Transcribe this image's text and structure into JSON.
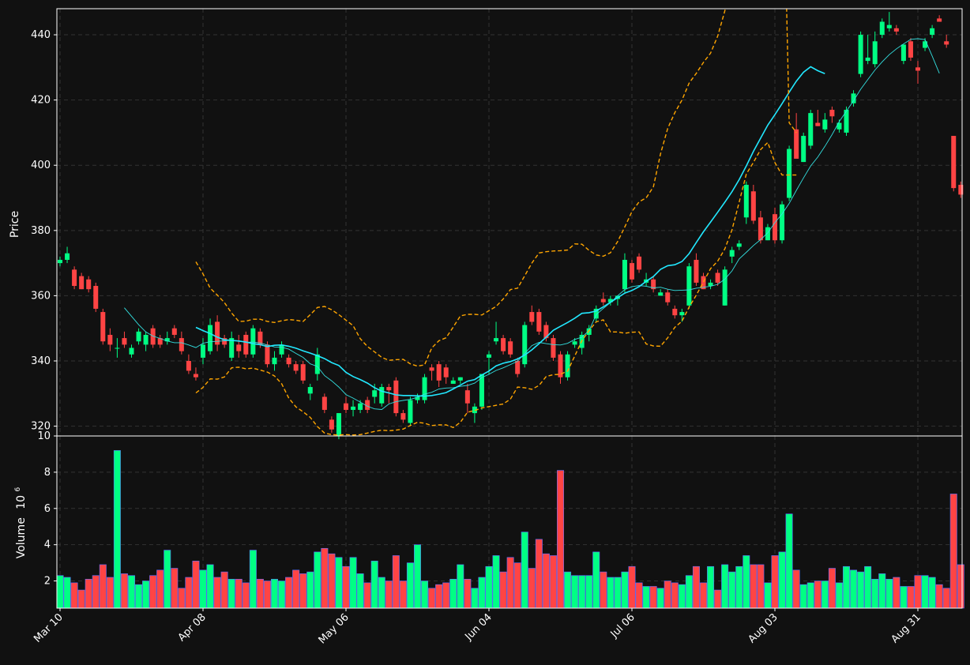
{
  "chart_data": {
    "type": "candlestick",
    "colors": {
      "background": "#111111",
      "up": "#00ff84",
      "down": "#ff4444",
      "volume_edge": "#5a6cff",
      "ma_fast": "#33e0e0",
      "ma_slow": "#22e8ff",
      "bollinger": "#ffa500",
      "grid": "#333333",
      "axis": "#ffffff"
    },
    "grid": true,
    "price_panel": {
      "ylabel": "Price",
      "yticks": [
        320,
        340,
        360,
        380,
        400,
        420,
        440
      ],
      "ylim": [
        317,
        448
      ]
    },
    "volume_panel": {
      "ylabel": "Volume",
      "ylabel_exponent": "10",
      "ylabel_exponent_power": "6",
      "yticks": [
        "2",
        "4",
        "6",
        "8",
        "10"
      ],
      "ytick_values": [
        2,
        4,
        6,
        8,
        10
      ],
      "ylim": [
        0.5,
        10
      ]
    },
    "xticks": [
      {
        "label": "Mar 10",
        "index": 0
      },
      {
        "label": "Apr 08",
        "index": 20
      },
      {
        "label": "May 06",
        "index": 40
      },
      {
        "label": "Jun 04",
        "index": 60
      },
      {
        "label": "Jul 06",
        "index": 80
      },
      {
        "label": "Aug 03",
        "index": 100
      },
      {
        "label": "Aug 31",
        "index": 120
      }
    ],
    "ohlc": [
      [
        370,
        372,
        369,
        371
      ],
      [
        371,
        375,
        370,
        373
      ],
      [
        368,
        369,
        362,
        363
      ],
      [
        366,
        367,
        362,
        362
      ],
      [
        365,
        366,
        361,
        362
      ],
      [
        363,
        364,
        355,
        356
      ],
      [
        355,
        356,
        345,
        346
      ],
      [
        348,
        350,
        343,
        345
      ],
      [
        344,
        347,
        341,
        344
      ],
      [
        347,
        349,
        344,
        345
      ],
      [
        342,
        345,
        341,
        344
      ],
      [
        346,
        350,
        345,
        349
      ],
      [
        345,
        349,
        343,
        348
      ],
      [
        350,
        351,
        344,
        345
      ],
      [
        347,
        348,
        344,
        345
      ],
      [
        346,
        349,
        345,
        347
      ],
      [
        350,
        351,
        347,
        348
      ],
      [
        347,
        349,
        342,
        343
      ],
      [
        340,
        342,
        336,
        337
      ],
      [
        336,
        338,
        334,
        335
      ],
      [
        341,
        347,
        339,
        345
      ],
      [
        343,
        353,
        342,
        351
      ],
      [
        352,
        354,
        343,
        345
      ],
      [
        347,
        348,
        344,
        345
      ],
      [
        341,
        349,
        340,
        347
      ],
      [
        345,
        348,
        341,
        343
      ],
      [
        348,
        349,
        341,
        342
      ],
      [
        342,
        351,
        341,
        350
      ],
      [
        349,
        350,
        344,
        345
      ],
      [
        345,
        346,
        338,
        339
      ],
      [
        339,
        343,
        337,
        341
      ],
      [
        342,
        346,
        341,
        345
      ],
      [
        341,
        342,
        338,
        339
      ],
      [
        339,
        340,
        336,
        337
      ],
      [
        339,
        340,
        333,
        334
      ],
      [
        330,
        333,
        328,
        332
      ],
      [
        336,
        344,
        334,
        342
      ],
      [
        329,
        330,
        324,
        325
      ],
      [
        322,
        323,
        318,
        319
      ],
      [
        317,
        324,
        316,
        324
      ],
      [
        327,
        329,
        324,
        325
      ],
      [
        325,
        328,
        323,
        326
      ],
      [
        325,
        328,
        324,
        327
      ],
      [
        328,
        329,
        324,
        325
      ],
      [
        329,
        333,
        327,
        331
      ],
      [
        327,
        333,
        326,
        332
      ],
      [
        332,
        333,
        327,
        331
      ],
      [
        334,
        335,
        323,
        324
      ],
      [
        324,
        325,
        321,
        322
      ],
      [
        321,
        329,
        320,
        328
      ],
      [
        328,
        330,
        327,
        329
      ],
      [
        328,
        336,
        327,
        335
      ],
      [
        338,
        339,
        334,
        337
      ],
      [
        339,
        340,
        332,
        334
      ],
      [
        338,
        339,
        333,
        335
      ],
      [
        333,
        335,
        333,
        334
      ],
      [
        334,
        335,
        333,
        335
      ],
      [
        331,
        333,
        324,
        327
      ],
      [
        324,
        327,
        321,
        326
      ],
      [
        326,
        336,
        325,
        336
      ],
      [
        341,
        343,
        336,
        342
      ],
      [
        346,
        352,
        345,
        347
      ],
      [
        347,
        348,
        342,
        343
      ],
      [
        346,
        347,
        341,
        342
      ],
      [
        340,
        341,
        335,
        336
      ],
      [
        339,
        352,
        338,
        351
      ],
      [
        355,
        357,
        351,
        352
      ],
      [
        355,
        356,
        348,
        349
      ],
      [
        351,
        352,
        346,
        347
      ],
      [
        347,
        348,
        340,
        341
      ],
      [
        342,
        343,
        333,
        335
      ],
      [
        335,
        343,
        334,
        342
      ],
      [
        345,
        347,
        344,
        346
      ],
      [
        344,
        349,
        342,
        348
      ],
      [
        348,
        351,
        346,
        350
      ],
      [
        353,
        357,
        352,
        356
      ],
      [
        359,
        361,
        357,
        358
      ],
      [
        358,
        360,
        357,
        359
      ],
      [
        359,
        360,
        357,
        360
      ],
      [
        362,
        373,
        361,
        371
      ],
      [
        370,
        371,
        364,
        365
      ],
      [
        372,
        373,
        367,
        368
      ],
      [
        364,
        367,
        363,
        365
      ],
      [
        365,
        366,
        361,
        362
      ],
      [
        360,
        362,
        360,
        361
      ],
      [
        361,
        362,
        357,
        358
      ],
      [
        356,
        357,
        353,
        354
      ],
      [
        354,
        356,
        352,
        355
      ],
      [
        357,
        370,
        356,
        369
      ],
      [
        371,
        373,
        363,
        364
      ],
      [
        366,
        367,
        362,
        362
      ],
      [
        363,
        365,
        362,
        364
      ],
      [
        367,
        368,
        363,
        364
      ],
      [
        357,
        369,
        357,
        368
      ],
      [
        372,
        375,
        370,
        374
      ],
      [
        375,
        377,
        374,
        376
      ],
      [
        384,
        395,
        382,
        394
      ],
      [
        392,
        394,
        382,
        383
      ],
      [
        384,
        386,
        376,
        377
      ],
      [
        377,
        382,
        377,
        381
      ],
      [
        385,
        387,
        376,
        377
      ],
      [
        377,
        389,
        376,
        388
      ],
      [
        390,
        406,
        389,
        405
      ],
      [
        411,
        416,
        403,
        402
      ],
      [
        401,
        410,
        401,
        409
      ],
      [
        406,
        417,
        405,
        416
      ],
      [
        413,
        417,
        412,
        412
      ],
      [
        411,
        416,
        410,
        414
      ],
      [
        417,
        418,
        413,
        415
      ],
      [
        411,
        414,
        410,
        413
      ],
      [
        410,
        418,
        409,
        417
      ],
      [
        419,
        423,
        418,
        422
      ],
      [
        428,
        441,
        427,
        440
      ],
      [
        432,
        440,
        431,
        433
      ],
      [
        431,
        441,
        430,
        438
      ],
      [
        440,
        445,
        439,
        444
      ],
      [
        442,
        447,
        441,
        443
      ],
      [
        442,
        443,
        440,
        441
      ],
      [
        432,
        437,
        431,
        437
      ],
      [
        438,
        439,
        432,
        433
      ],
      [
        430,
        432,
        425,
        429
      ],
      [
        436,
        439,
        435,
        438
      ],
      [
        440,
        443,
        439,
        442
      ],
      [
        445,
        446,
        444,
        444
      ],
      [
        438,
        440,
        436,
        437
      ],
      [
        409,
        409,
        392,
        393
      ],
      [
        394,
        395,
        390,
        391
      ]
    ],
    "ma_fast": [
      null,
      null,
      null,
      null,
      null,
      null,
      null,
      null,
      null,
      356.3,
      353.7,
      351.1,
      348.9,
      347.6,
      346.9,
      346.1,
      345.6,
      345.6,
      344.9,
      344.1,
      345.4,
      345.9,
      346.0,
      346.2,
      346.3,
      346.2,
      345.7,
      345.8,
      345.5,
      344.9,
      344.3,
      344.2,
      343.6,
      342.3,
      341.1,
      339.1,
      338.3,
      335.5,
      333.9,
      332.0,
      329.7,
      328.6,
      327.4,
      326.1,
      325.3,
      325.1,
      326.8,
      327.5,
      327.9,
      328.2,
      328.9,
      329.8,
      330.4,
      331.4,
      331.7,
      331.8,
      332.2,
      332.5,
      333.2,
      334.9,
      335.9,
      337.1,
      337.9,
      338.9,
      339.9,
      342.3,
      344.7,
      345.7,
      345.3,
      345.0,
      344.9,
      345.4,
      346.6,
      347.3,
      349.3,
      354.2,
      356.1,
      357.9,
      360.0,
      361.9,
      362.8,
      363.1,
      362.9,
      362.4,
      362.6,
      362.0,
      361.6,
      361.7,
      361.8,
      362.3,
      362.6,
      362.9,
      363.5,
      365.1,
      367.6,
      371.3,
      373.3,
      375.4,
      377.2,
      379.3,
      382.4,
      385.1,
      388.3,
      392.3,
      396.1,
      399.8,
      402.5,
      405.8,
      409.4,
      413.4,
      416.6,
      419.8,
      423.3,
      426.3,
      429.2,
      431.7,
      433.9,
      435.7,
      437.2,
      438.6,
      438.8,
      438.5,
      433.5,
      428.2
    ],
    "ma_slow": [
      null,
      null,
      null,
      null,
      null,
      null,
      null,
      null,
      null,
      null,
      null,
      null,
      null,
      null,
      null,
      null,
      null,
      null,
      null,
      350.3,
      349.3,
      348.4,
      347.3,
      346.5,
      346.3,
      346.1,
      345.8,
      345.3,
      345.0,
      344.4,
      344.8,
      344.9,
      344.5,
      343.9,
      343.1,
      342.4,
      341.6,
      340.7,
      339.5,
      338.6,
      336.5,
      335.2,
      334.3,
      333.2,
      331.8,
      330.7,
      330.2,
      329.6,
      329.4,
      329.4,
      329.3,
      329.2,
      329.4,
      329.8,
      330.3,
      331.4,
      332.6,
      333.8,
      334.3,
      335.7,
      336.9,
      338.5,
      339.3,
      339.8,
      340.6,
      341.8,
      343.4,
      345.3,
      347.3,
      349.4,
      350.6,
      351.8,
      353.1,
      354.6,
      354.8,
      355.3,
      356.6,
      358.0,
      359.4,
      360.8,
      361.6,
      362.8,
      364.4,
      365.9,
      368.1,
      369.2,
      369.5,
      370.5,
      372.9,
      376.3,
      379.6,
      382.6,
      385.6,
      388.7,
      391.9,
      395.6,
      399.8,
      404.3,
      408.3,
      412.3,
      415.5,
      418.9,
      422.4,
      425.8,
      428.5,
      430.2,
      429.0,
      428.1
    ],
    "bb_upper": [
      null,
      null,
      null,
      null,
      null,
      null,
      null,
      null,
      null,
      null,
      null,
      null,
      null,
      null,
      null,
      null,
      null,
      null,
      null,
      370.4,
      366.7,
      362.3,
      360.2,
      357.9,
      354.7,
      352.1,
      352.2,
      352.8,
      352.8,
      352.1,
      351.8,
      352.3,
      352.7,
      352.5,
      352.1,
      354.2,
      356.4,
      356.7,
      355.7,
      354.2,
      352.5,
      350.8,
      346.8,
      344.4,
      342.8,
      341.1,
      340.2,
      340.4,
      340.5,
      339.1,
      338.4,
      338.8,
      344.0,
      346.2,
      347.1,
      350.4,
      353.8,
      354.3,
      354.3,
      354.1,
      355.4,
      356.7,
      359.0,
      361.9,
      362.3,
      366.1,
      370.0,
      373.1,
      373.5,
      373.7,
      373.8,
      374.0,
      375.9,
      375.8,
      373.9,
      372.5,
      372.1,
      373.2,
      376.6,
      381.1,
      385.8,
      388.8,
      390.0,
      393.4,
      403.5,
      411.3,
      416.1,
      420.0,
      425.2,
      428.2,
      431.5,
      434.4,
      439.6,
      447.4,
      456.9,
      466.2,
      474.3,
      483.0,
      491.8,
      500.4,
      506.4,
      510.0,
      413.0,
      410.0
    ],
    "bb_lower": [
      null,
      null,
      null,
      null,
      null,
      null,
      null,
      null,
      null,
      null,
      null,
      null,
      null,
      null,
      null,
      null,
      null,
      null,
      null,
      330.2,
      331.9,
      334.5,
      334.4,
      335.1,
      337.9,
      338.1,
      337.6,
      337.8,
      337.2,
      336.6,
      335.4,
      333.0,
      328.6,
      325.9,
      324.4,
      322.7,
      319.9,
      317.9,
      317.4,
      317.3,
      317.4,
      317.3,
      317.4,
      317.9,
      318.4,
      318.8,
      318.6,
      318.8,
      319.1,
      320.2,
      321.2,
      320.9,
      320.2,
      320.4,
      320.4,
      319.6,
      321.2,
      324.3,
      324.8,
      325.6,
      326.0,
      326.4,
      326.8,
      328.3,
      332.0,
      331.8,
      331.3,
      332.5,
      335.2,
      335.8,
      335.9,
      336.9,
      341.5,
      346.2,
      349.3,
      352.0,
      352.6,
      348.9,
      348.9,
      348.5,
      348.8,
      348.9,
      345.2,
      344.6,
      344.5,
      347.1,
      350.3,
      352.2,
      356.5,
      360.2,
      364.2,
      368.3,
      370.6,
      374.4,
      380.2,
      388.7,
      397.3,
      400.9,
      404.8,
      407.0,
      400.8,
      397.0,
      397.0,
      397.0
    ],
    "volume": [
      2.3,
      2.2,
      1.9,
      1.5,
      2.1,
      2.3,
      2.9,
      2.2,
      9.2,
      2.4,
      2.3,
      1.8,
      2.0,
      2.3,
      2.6,
      3.7,
      2.7,
      1.6,
      2.2,
      3.1,
      2.6,
      2.9,
      2.2,
      2.5,
      2.1,
      2.1,
      1.9,
      3.7,
      2.1,
      2.0,
      2.1,
      2.0,
      2.2,
      2.6,
      2.4,
      2.5,
      3.6,
      3.8,
      3.5,
      3.3,
      2.8,
      3.3,
      2.4,
      1.9,
      3.1,
      2.2,
      2.0,
      3.4,
      2.0,
      3.0,
      4.0,
      2.0,
      1.6,
      1.8,
      1.9,
      2.1,
      2.9,
      2.1,
      1.6,
      2.2,
      2.8,
      3.4,
      2.5,
      3.3,
      3.0,
      4.7,
      2.7,
      4.3,
      3.5,
      3.4,
      8.1,
      2.5,
      2.3,
      2.3,
      2.3,
      3.6,
      2.5,
      2.2,
      2.2,
      2.5,
      2.8,
      1.9,
      1.7,
      1.7,
      1.6,
      2.0,
      1.9,
      1.8,
      2.3,
      2.8,
      1.9,
      2.8,
      1.5,
      2.9,
      2.5,
      2.8,
      3.4,
      2.9,
      2.9,
      1.9,
      3.4,
      3.6,
      5.7,
      2.6,
      1.8,
      1.9,
      2.0,
      2.0,
      2.7,
      1.9,
      2.8,
      2.6,
      2.5,
      2.8,
      2.1,
      2.4,
      2.1,
      2.2,
      1.7,
      1.7,
      2.3,
      2.3,
      2.2,
      1.8,
      1.6,
      6.8,
      2.9
    ]
  }
}
